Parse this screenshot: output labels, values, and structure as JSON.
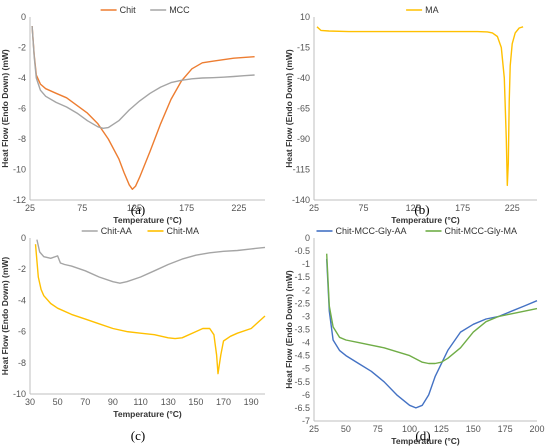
{
  "chart_data": [
    {
      "type": "line",
      "panel": "(a)",
      "xlabel": "Temperature (°C)",
      "ylabel": "Heat Flow  (Endo Down) (mW)",
      "xlim": [
        25,
        250
      ],
      "ylim": [
        -12,
        0
      ],
      "xticks": [
        25,
        75,
        125,
        175,
        225
      ],
      "yticks": [
        0,
        -2,
        -4,
        -6,
        -8,
        -10,
        -12
      ],
      "legend_position": "top-center",
      "series": [
        {
          "name": "Chit",
          "color": "#ED7D31",
          "x": [
            27,
            29,
            31,
            35,
            40,
            50,
            60,
            70,
            80,
            90,
            100,
            110,
            115,
            120,
            123,
            126,
            130,
            140,
            150,
            160,
            170,
            180,
            190,
            200,
            210,
            220,
            230,
            240
          ],
          "y": [
            -0.6,
            -2.5,
            -3.8,
            -4.4,
            -4.7,
            -5.0,
            -5.3,
            -5.8,
            -6.3,
            -7.0,
            -8.0,
            -9.3,
            -10.2,
            -11.0,
            -11.3,
            -11.1,
            -10.5,
            -8.8,
            -7.0,
            -5.4,
            -4.2,
            -3.4,
            -3.0,
            -2.9,
            -2.8,
            -2.7,
            -2.65,
            -2.6
          ]
        },
        {
          "name": "MCC",
          "color": "#A5A5A5",
          "x": [
            27,
            29,
            31,
            35,
            40,
            50,
            60,
            70,
            80,
            90,
            95,
            100,
            110,
            120,
            130,
            140,
            150,
            160,
            170,
            180,
            190,
            200,
            210,
            220,
            230,
            240
          ],
          "y": [
            -0.6,
            -2.6,
            -4.0,
            -4.8,
            -5.2,
            -5.6,
            -5.9,
            -6.3,
            -6.8,
            -7.2,
            -7.3,
            -7.25,
            -6.8,
            -6.1,
            -5.5,
            -5.0,
            -4.6,
            -4.3,
            -4.15,
            -4.05,
            -4.0,
            -3.98,
            -3.95,
            -3.9,
            -3.85,
            -3.8
          ]
        }
      ]
    },
    {
      "type": "line",
      "panel": "(b)",
      "xlabel": "Temperature (°C)",
      "ylabel": "Heat Flow  (Endo Down) (mW)",
      "xlim": [
        25,
        250
      ],
      "ylim": [
        -140,
        10
      ],
      "xticks": [
        25,
        75,
        125,
        175,
        225
      ],
      "yticks": [
        10,
        -15,
        -40,
        -65,
        -90,
        -115,
        -140
      ],
      "legend_position": "top-center",
      "series": [
        {
          "name": "MA",
          "color": "#FFC000",
          "x": [
            28,
            32,
            40,
            60,
            80,
            100,
            120,
            140,
            160,
            180,
            190,
            200,
            205,
            210,
            214,
            217,
            219,
            220,
            221,
            222,
            223,
            225,
            228,
            232,
            236
          ],
          "y": [
            2,
            -1,
            -1.5,
            -2,
            -2,
            -2,
            -2,
            -2,
            -2,
            -2,
            -2,
            -2.2,
            -3,
            -6,
            -15,
            -40,
            -90,
            -128,
            -110,
            -60,
            -30,
            -12,
            -3,
            1,
            2
          ]
        }
      ]
    },
    {
      "type": "line",
      "panel": "(c)",
      "xlabel": "Temperature (°C)",
      "ylabel": "Heat Flow  (Endo Down) (mW)",
      "xlim": [
        30,
        200
      ],
      "ylim": [
        -10,
        0
      ],
      "xticks": [
        30,
        50,
        70,
        90,
        110,
        130,
        150,
        170,
        190
      ],
      "yticks": [
        0,
        -2,
        -4,
        -6,
        -8,
        -10
      ],
      "legend_position": "top-center",
      "series": [
        {
          "name": "Chit-AA",
          "color": "#A5A5A5",
          "x": [
            35,
            37,
            40,
            45,
            50,
            52,
            55,
            60,
            70,
            80,
            90,
            95,
            100,
            110,
            120,
            130,
            140,
            150,
            160,
            170,
            180,
            190,
            200
          ],
          "y": [
            -0.1,
            -0.9,
            -1.2,
            -1.3,
            -1.15,
            -1.6,
            -1.7,
            -1.8,
            -2.1,
            -2.5,
            -2.8,
            -2.9,
            -2.8,
            -2.5,
            -2.1,
            -1.7,
            -1.35,
            -1.1,
            -0.95,
            -0.85,
            -0.8,
            -0.7,
            -0.6
          ]
        },
        {
          "name": "Chit-MA",
          "color": "#FFC000",
          "x": [
            34,
            36,
            38,
            40,
            45,
            50,
            60,
            70,
            80,
            90,
            100,
            110,
            120,
            130,
            135,
            140,
            150,
            155,
            160,
            163,
            165,
            166,
            168,
            170,
            175,
            180,
            190,
            200
          ],
          "y": [
            -0.4,
            -2.5,
            -3.3,
            -3.7,
            -4.2,
            -4.5,
            -4.9,
            -5.2,
            -5.5,
            -5.8,
            -6.0,
            -6.1,
            -6.2,
            -6.4,
            -6.45,
            -6.4,
            -6.0,
            -5.8,
            -5.8,
            -6.2,
            -7.5,
            -8.7,
            -7.5,
            -6.6,
            -6.3,
            -6.1,
            -5.8,
            -5.0
          ]
        }
      ]
    },
    {
      "type": "line",
      "panel": "(d)",
      "xlabel": "Temperature (°C)",
      "ylabel": "Heat Flow  (Endo Down) (mW)",
      "xlim": [
        25,
        200
      ],
      "ylim": [
        -7,
        0
      ],
      "xticks": [
        25,
        50,
        75,
        100,
        125,
        150,
        175,
        200
      ],
      "yticks": [
        0,
        -0.5,
        -1,
        -1.5,
        -2,
        -2.5,
        -3,
        -3.5,
        -4,
        -4.5,
        -5,
        -5.5,
        -6,
        -6.5,
        -7
      ],
      "legend_position": "top-center",
      "series": [
        {
          "name": "Chit-MCC-Gly-AA",
          "color": "#4472C4",
          "x": [
            35,
            37,
            40,
            45,
            50,
            60,
            70,
            80,
            90,
            100,
            105,
            110,
            115,
            120,
            130,
            140,
            150,
            160,
            170,
            180,
            190,
            200
          ],
          "y": [
            -0.8,
            -2.8,
            -3.9,
            -4.3,
            -4.5,
            -4.8,
            -5.1,
            -5.5,
            -6.0,
            -6.4,
            -6.5,
            -6.4,
            -6.0,
            -5.3,
            -4.3,
            -3.6,
            -3.3,
            -3.1,
            -3.0,
            -2.8,
            -2.6,
            -2.4
          ]
        },
        {
          "name": "Chit-MCC-Gly-MA",
          "color": "#70AD47",
          "x": [
            35,
            37,
            40,
            45,
            50,
            60,
            70,
            80,
            90,
            100,
            110,
            115,
            120,
            125,
            130,
            140,
            150,
            160,
            170,
            180,
            190,
            200
          ],
          "y": [
            -0.6,
            -2.6,
            -3.4,
            -3.8,
            -3.9,
            -4.0,
            -4.1,
            -4.2,
            -4.35,
            -4.5,
            -4.75,
            -4.8,
            -4.8,
            -4.75,
            -4.6,
            -4.2,
            -3.6,
            -3.2,
            -3.0,
            -2.9,
            -2.8,
            -2.7
          ]
        }
      ]
    }
  ]
}
